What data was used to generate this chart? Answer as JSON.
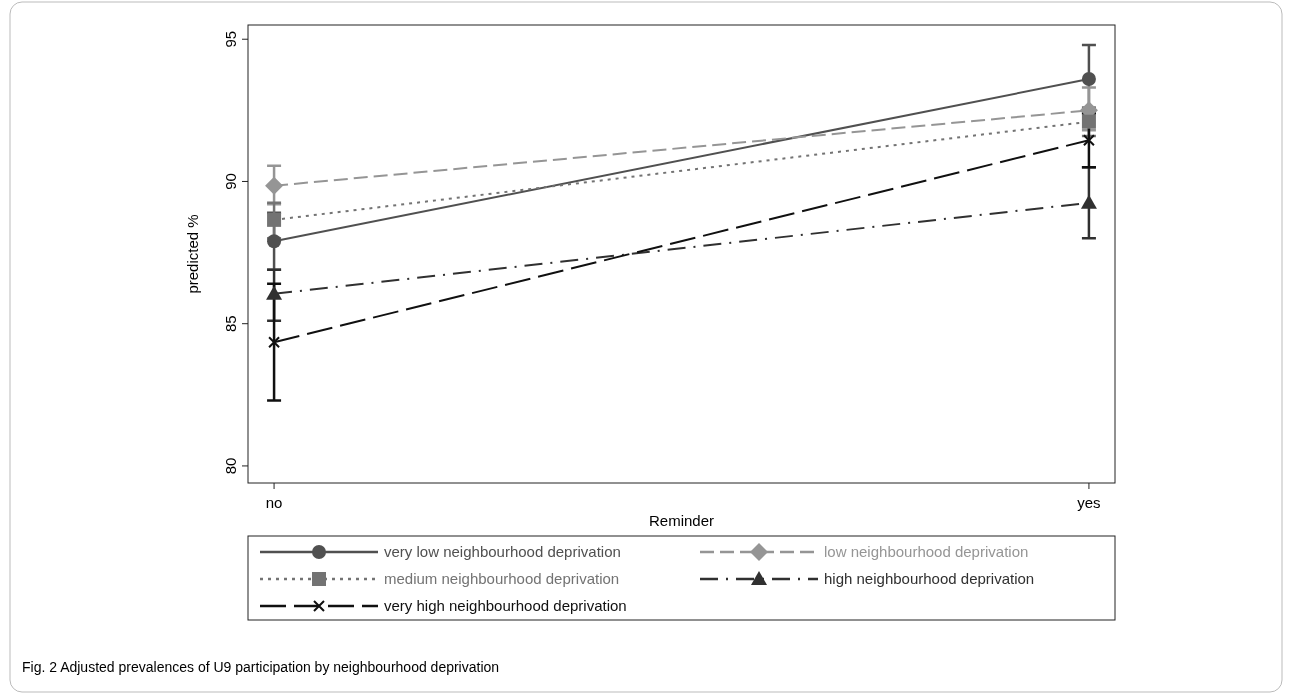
{
  "chart_data": {
    "type": "line",
    "xlabel": "Reminder",
    "ylabel": "predicted %",
    "categories": [
      "no",
      "yes"
    ],
    "ylim": [
      79.4,
      95.5
    ],
    "yticks": [
      80,
      85,
      90,
      95
    ],
    "grid": false,
    "legend": "bottom",
    "annotations": [
      "Fig. 2  Adjusted prevalences of U9 participation by neighbourhood deprivation"
    ],
    "series": [
      {
        "name": "very low neighbourhood deprivation",
        "color": "#505050",
        "marker": "circle",
        "line_style": "solid",
        "values": [
          87.9,
          93.6
        ],
        "errors": [
          [
            86.9,
            88.9
          ],
          [
            92.4,
            94.8
          ]
        ]
      },
      {
        "name": "low neighbourhood deprivation",
        "color": "#959595",
        "marker": "diamond",
        "line_style": "dashed",
        "values": [
          89.85,
          92.5
        ],
        "errors": [
          [
            89.2,
            90.55
          ],
          [
            91.8,
            93.3
          ]
        ]
      },
      {
        "name": "medium neighbourhood deprivation",
        "color": "#737373",
        "marker": "square",
        "line_style": "dotted",
        "values": [
          88.65,
          92.1
        ],
        "errors": [
          [
            88.0,
            89.25
          ],
          [
            91.6,
            92.6
          ]
        ]
      },
      {
        "name": "high neighbourhood deprivation",
        "color": "#303030",
        "marker": "triangle",
        "line_style": "dashdot",
        "values": [
          86.05,
          89.25
        ],
        "errors": [
          [
            85.1,
            86.9
          ],
          [
            88.0,
            90.5
          ]
        ]
      },
      {
        "name": "very high neighbourhood deprivation",
        "color": "#101010",
        "marker": "cross",
        "line_style": "longdash",
        "values": [
          84.35,
          91.45
        ],
        "errors": [
          [
            82.3,
            86.4
          ],
          [
            90.5,
            92.4
          ]
        ]
      }
    ]
  }
}
